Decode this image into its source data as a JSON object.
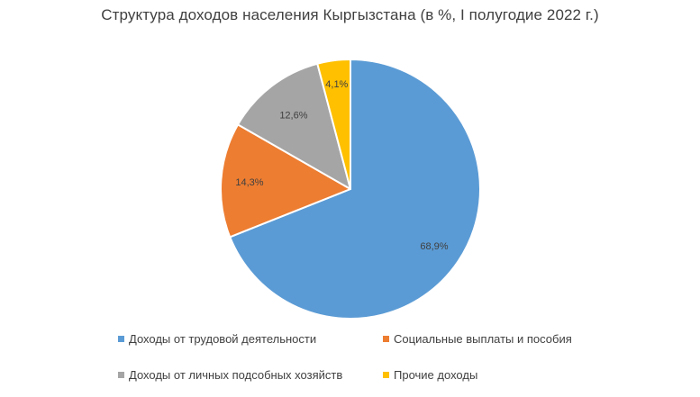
{
  "chart_data": {
    "type": "pie",
    "title": "Структура доходов населения Кыргызстана (в %, I полугодие 2022 г.)",
    "categories": [
      "Доходы от трудовой деятельности",
      "Социальные выплаты и пособия",
      "Доходы от личных подсобных хозяйств",
      "Прочие доходы"
    ],
    "values": [
      68.9,
      14.3,
      12.6,
      4.1
    ],
    "value_labels": [
      "68,9%",
      "14,3%",
      "12,6%",
      "4,1%"
    ],
    "colors": [
      "#5b9bd5",
      "#ed7d31",
      "#a5a5a5",
      "#ffc000"
    ],
    "legend_position": "bottom"
  }
}
